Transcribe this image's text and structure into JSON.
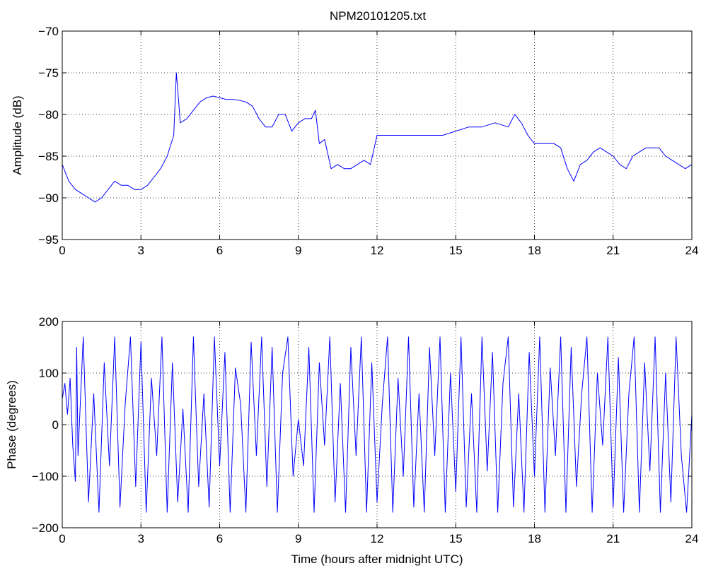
{
  "figure": {
    "title": "NPM20101205.txt",
    "colors": {
      "background": "#ffffff",
      "axes": "#000000",
      "series": "#0000ff"
    }
  },
  "chart_data": [
    {
      "type": "line",
      "title": "NPM20101205.txt",
      "xlabel": "",
      "ylabel": "Amplitude (dB)",
      "xlim": [
        0,
        24
      ],
      "ylim": [
        -95,
        -70
      ],
      "xticks": [
        "0",
        "3",
        "6",
        "9",
        "12",
        "15",
        "18",
        "21",
        "24"
      ],
      "yticks": [
        "-70",
        "-75",
        "-80",
        "-85",
        "-90",
        "-95"
      ],
      "grid": true,
      "legend": "none",
      "series": [
        {
          "color": "#0000ff",
          "x": [
            0,
            0.25,
            0.5,
            0.75,
            1.0,
            1.25,
            1.5,
            1.75,
            2.0,
            2.25,
            2.5,
            2.75,
            3.0,
            3.25,
            3.5,
            3.75,
            4.0,
            4.25,
            4.35,
            4.5,
            4.75,
            5.0,
            5.25,
            5.5,
            5.75,
            6.0,
            6.25,
            6.5,
            6.75,
            7.0,
            7.25,
            7.5,
            7.75,
            8.0,
            8.25,
            8.5,
            8.75,
            9.0,
            9.25,
            9.5,
            9.65,
            9.8,
            10.0,
            10.25,
            10.5,
            10.75,
            11.0,
            11.25,
            11.5,
            11.75,
            12.0,
            12.5,
            13.0,
            13.5,
            14.0,
            14.5,
            15.0,
            15.5,
            16.0,
            16.5,
            17.0,
            17.25,
            17.5,
            17.75,
            18.0,
            18.25,
            18.5,
            18.75,
            19.0,
            19.25,
            19.5,
            19.75,
            20.0,
            20.25,
            20.5,
            20.75,
            21.0,
            21.25,
            21.5,
            21.75,
            22.0,
            22.25,
            22.5,
            22.75,
            23.0,
            23.25,
            23.5,
            23.75,
            24.0
          ],
          "y": [
            -86,
            -88,
            -89,
            -89.5,
            -90,
            -90.5,
            -90,
            -89,
            -88,
            -88.5,
            -88.5,
            -89,
            -89,
            -88.5,
            -87.5,
            -86.5,
            -85,
            -82.5,
            -75,
            -81,
            -80.5,
            -79.5,
            -78.5,
            -78,
            -77.8,
            -78,
            -78.2,
            -78.2,
            -78.3,
            -78.5,
            -79,
            -80.5,
            -81.5,
            -81.5,
            -80,
            -80,
            -82,
            -81,
            -80.5,
            -80.5,
            -79.5,
            -83.5,
            -83,
            -86.5,
            -86,
            -86.5,
            -86.5,
            -86,
            -85.5,
            -86,
            -82.5,
            -82.5,
            -82.5,
            -82.5,
            -82.5,
            -82.5,
            -82,
            -81.5,
            -81.5,
            -81,
            -81.5,
            -80,
            -81,
            -82.5,
            -83.5,
            -83.5,
            -83.5,
            -83.5,
            -84,
            -86.5,
            -88,
            -86,
            -85.5,
            -84.5,
            -84,
            -84.5,
            -85,
            -86,
            -86.5,
            -85,
            -84.5,
            -84,
            -84,
            -84,
            -85,
            -85.5,
            -86,
            -86.5,
            -86
          ]
        }
      ]
    },
    {
      "type": "line",
      "title": "",
      "xlabel": "Time (hours after midnight UTC)",
      "ylabel": "Phase (degrees)",
      "xlim": [
        0,
        24
      ],
      "ylim": [
        -200,
        200
      ],
      "xticks": [
        "0",
        "3",
        "6",
        "9",
        "12",
        "15",
        "18",
        "21",
        "24"
      ],
      "yticks": [
        "200",
        "100",
        "0",
        "-100",
        "-200"
      ],
      "grid": true,
      "legend": "none",
      "series": [
        {
          "color": "#0000ff",
          "x": [
            0,
            0.1,
            0.2,
            0.3,
            0.4,
            0.5,
            0.55,
            0.6,
            0.8,
            1.0,
            1.2,
            1.4,
            1.6,
            1.8,
            2.0,
            2.2,
            2.4,
            2.6,
            2.8,
            3.0,
            3.2,
            3.4,
            3.6,
            3.8,
            4.0,
            4.2,
            4.4,
            4.6,
            4.8,
            5.0,
            5.2,
            5.4,
            5.6,
            5.8,
            6.0,
            6.2,
            6.4,
            6.6,
            6.8,
            7.0,
            7.2,
            7.4,
            7.6,
            7.8,
            8.0,
            8.2,
            8.4,
            8.6,
            8.8,
            9.0,
            9.2,
            9.4,
            9.6,
            9.8,
            10.0,
            10.2,
            10.4,
            10.6,
            10.8,
            11.0,
            11.2,
            11.4,
            11.6,
            11.8,
            12.0,
            12.2,
            12.4,
            12.6,
            12.8,
            13.0,
            13.2,
            13.4,
            13.6,
            13.8,
            14.0,
            14.2,
            14.4,
            14.6,
            14.8,
            15.0,
            15.2,
            15.4,
            15.6,
            15.8,
            16.0,
            16.2,
            16.4,
            16.6,
            16.8,
            17.0,
            17.2,
            17.4,
            17.6,
            17.8,
            18.0,
            18.2,
            18.4,
            18.6,
            18.8,
            19.0,
            19.2,
            19.4,
            19.6,
            19.8,
            20.0,
            20.2,
            20.4,
            20.6,
            20.8,
            21.0,
            21.2,
            21.4,
            21.6,
            21.8,
            22.0,
            22.2,
            22.4,
            22.6,
            22.8,
            23.0,
            23.2,
            23.4,
            23.6,
            23.8,
            24.0
          ],
          "y": [
            50,
            80,
            20,
            90,
            -40,
            -110,
            150,
            -60,
            170,
            -150,
            60,
            -170,
            120,
            -80,
            170,
            -160,
            40,
            170,
            -120,
            160,
            -170,
            90,
            -60,
            170,
            -170,
            120,
            -150,
            30,
            -170,
            170,
            -120,
            60,
            -160,
            170,
            -80,
            140,
            -170,
            110,
            40,
            -170,
            160,
            -60,
            170,
            -120,
            150,
            -170,
            100,
            170,
            -100,
            10,
            -80,
            150,
            -170,
            120,
            -40,
            170,
            -150,
            80,
            -170,
            150,
            -60,
            170,
            -170,
            120,
            -150,
            40,
            170,
            -170,
            90,
            -100,
            170,
            -160,
            60,
            -170,
            150,
            -60,
            170,
            -170,
            100,
            -130,
            170,
            -160,
            60,
            -170,
            170,
            -90,
            140,
            -170,
            80,
            170,
            -160,
            60,
            -170,
            140,
            -100,
            170,
            -170,
            110,
            -60,
            170,
            -170,
            150,
            -120,
            60,
            170,
            -170,
            100,
            -40,
            170,
            -160,
            130,
            -170,
            60,
            170,
            -170,
            120,
            -90,
            170,
            -170,
            100,
            -150,
            170,
            -60,
            -170,
            20
          ]
        }
      ]
    }
  ]
}
